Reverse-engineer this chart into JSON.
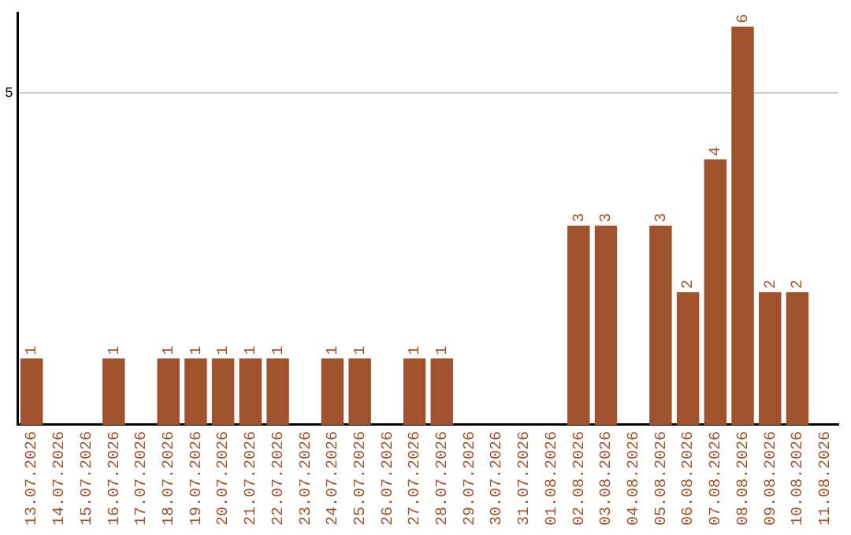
{
  "chart_data": {
    "type": "bar",
    "categories": [
      "13.07.2026",
      "14.07.2026",
      "15.07.2026",
      "16.07.2026",
      "17.07.2026",
      "18.07.2026",
      "19.07.2026",
      "20.07.2026",
      "21.07.2026",
      "22.07.2026",
      "23.07.2026",
      "24.07.2026",
      "25.07.2026",
      "26.07.2026",
      "27.07.2026",
      "28.07.2026",
      "29.07.2026",
      "30.07.2026",
      "31.07.2026",
      "01.08.2026",
      "02.08.2026",
      "03.08.2026",
      "04.08.2026",
      "05.08.2026",
      "06.08.2026",
      "07.08.2026",
      "08.08.2026",
      "09.08.2026",
      "10.08.2026",
      "11.08.2026"
    ],
    "values": [
      1,
      0,
      0,
      1,
      0,
      1,
      1,
      1,
      1,
      1,
      0,
      1,
      1,
      0,
      1,
      1,
      0,
      0,
      0,
      0,
      3,
      3,
      0,
      3,
      2,
      4,
      6,
      2,
      2,
      0
    ],
    "value_labels": [
      "1",
      null,
      null,
      "1",
      null,
      "1",
      "1",
      "1",
      "1",
      "1",
      null,
      "1",
      "1",
      null,
      "1",
      "1",
      null,
      null,
      null,
      null,
      "3",
      "3",
      null,
      "3",
      "2",
      "4",
      "6",
      "2",
      "2",
      null
    ],
    "color": "#a0522d",
    "ylim": [
      0,
      6.2
    ],
    "yticks": [
      5
    ],
    "grid": "y",
    "legend": false
  }
}
